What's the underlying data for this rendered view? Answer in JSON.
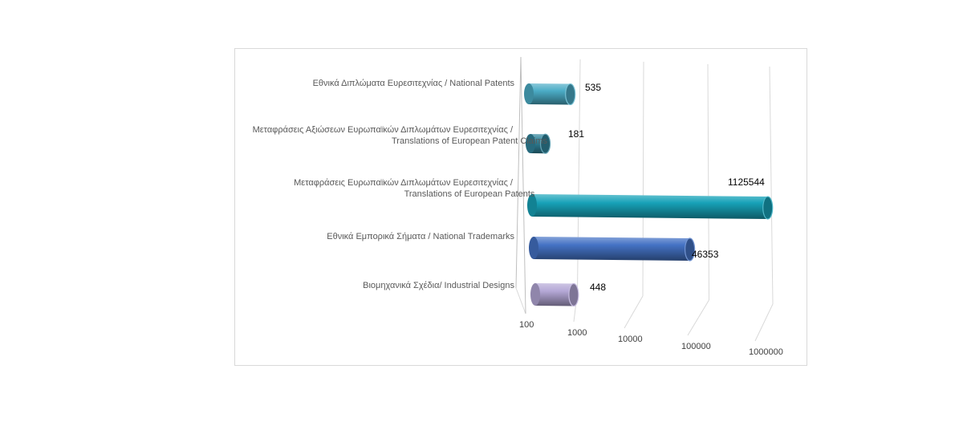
{
  "chart_data": {
    "type": "bar",
    "orientation": "horizontal",
    "style": "3d-cylinder",
    "scale": "log",
    "xlim": [
      100,
      1000000
    ],
    "ticks": [
      "100",
      "1000",
      "10000",
      "100000",
      "1000000"
    ],
    "grid": true,
    "categories": [
      [
        "Εθνικά Διπλώματα Ευρεσιτεχνίας / National Patents"
      ],
      [
        "Μεταφράσεις Αξιώσεων Ευρωπαϊκών Διπλωμάτων Ευρεσιτεχνίας /",
        "Translations of European Patent Claims"
      ],
      [
        "Μεταφράσεις Ευρωπαϊκών Διπλωμάτων Ευρεσιτεχνίας /",
        "Translations of European Patents"
      ],
      [
        "Εθνικά Εμπορικά Σήματα / National Trademarks"
      ],
      [
        "Βιομηχανικά Σχέδια/ Industrial Designs"
      ]
    ],
    "values": [
      535,
      181,
      1125544,
      46353,
      448
    ],
    "value_labels": [
      "535",
      "181",
      "1125544",
      "46353",
      "448"
    ],
    "colors": [
      "#4bacc6",
      "#31859c",
      "#17a2b8",
      "#4472c4",
      "#b4a7d6"
    ]
  }
}
